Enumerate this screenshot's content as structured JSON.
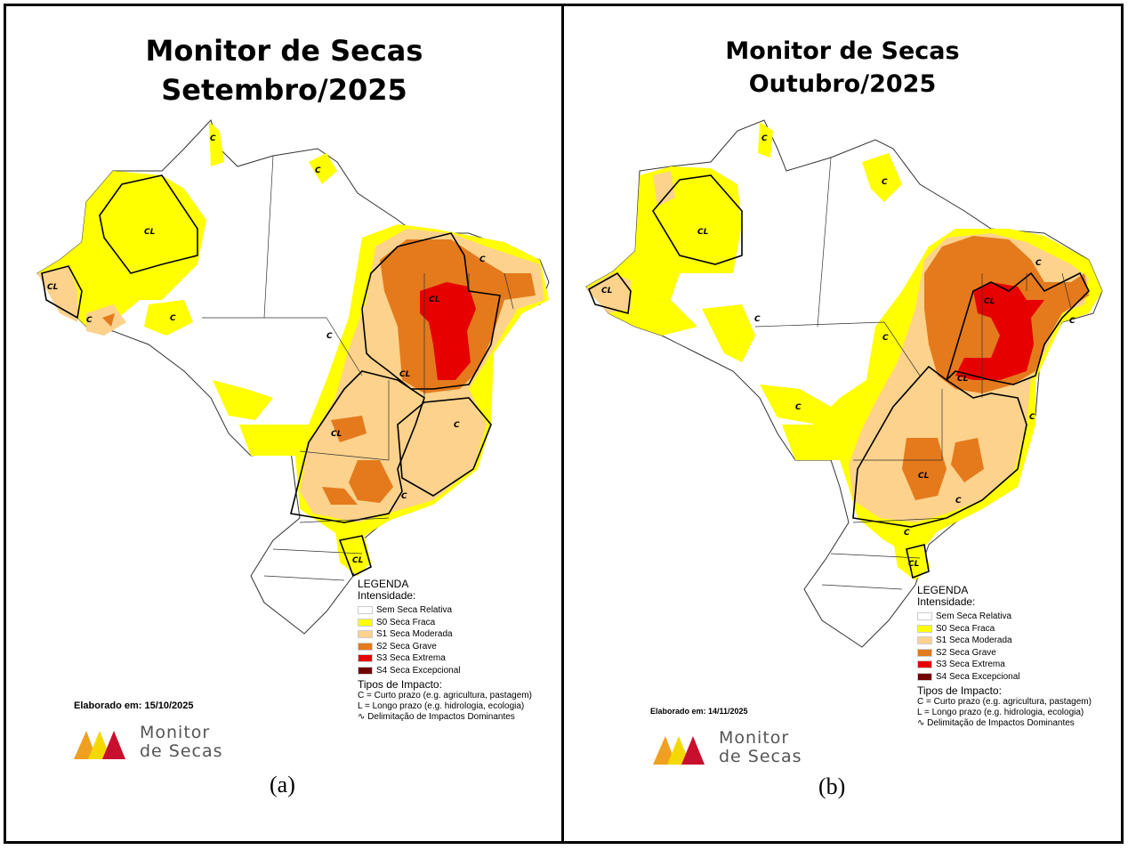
{
  "panels": [
    {
      "title_line1": "Monitor de Secas",
      "title_line2": "Setembro/2025",
      "elaborado": "Elaborado em: 15/10/2025",
      "caption": "(a)",
      "impact_labels": [
        "C",
        "CL",
        "CL",
        "C",
        "C",
        "C",
        "CL",
        "C",
        "CL",
        "C",
        "C",
        "CL",
        "C",
        "CL"
      ]
    },
    {
      "title_line1": "Monitor de Secas",
      "title_line2": "Outubro/2025",
      "elaborado": "Elaborado em: 14/11/2025",
      "caption": "(b)",
      "impact_labels": [
        "C",
        "C",
        "CL",
        "CL",
        "C",
        "C",
        "CL",
        "C",
        "CL",
        "C",
        "C",
        "C",
        "CL",
        "C",
        "C",
        "CL"
      ]
    }
  ],
  "legend": {
    "title": "LEGENDA",
    "subtitle": "Intensidade:",
    "items": [
      {
        "label": "Sem Seca Relativa",
        "color": "#ffffff"
      },
      {
        "label": "S0 Seca Fraca",
        "color": "#ffff00"
      },
      {
        "label": "S1 Seca Moderada",
        "color": "#fcd28c"
      },
      {
        "label": "S2 Seca Grave",
        "color": "#e47a1c"
      },
      {
        "label": "S3 Seca Extrema",
        "color": "#e60000"
      },
      {
        "label": "S4 Seca Excepcional",
        "color": "#730000"
      }
    ],
    "types_title": "Tipos de Impacto:",
    "type_c": "C = Curto prazo (e.g. agricultura, pastagem)",
    "type_l": "L = Longo prazo (e.g. hidrologia, ecologia)",
    "delim": "Delimitação de Impactos Dominantes"
  },
  "logo": {
    "line1": "Monitor",
    "line2": "de Secas"
  }
}
